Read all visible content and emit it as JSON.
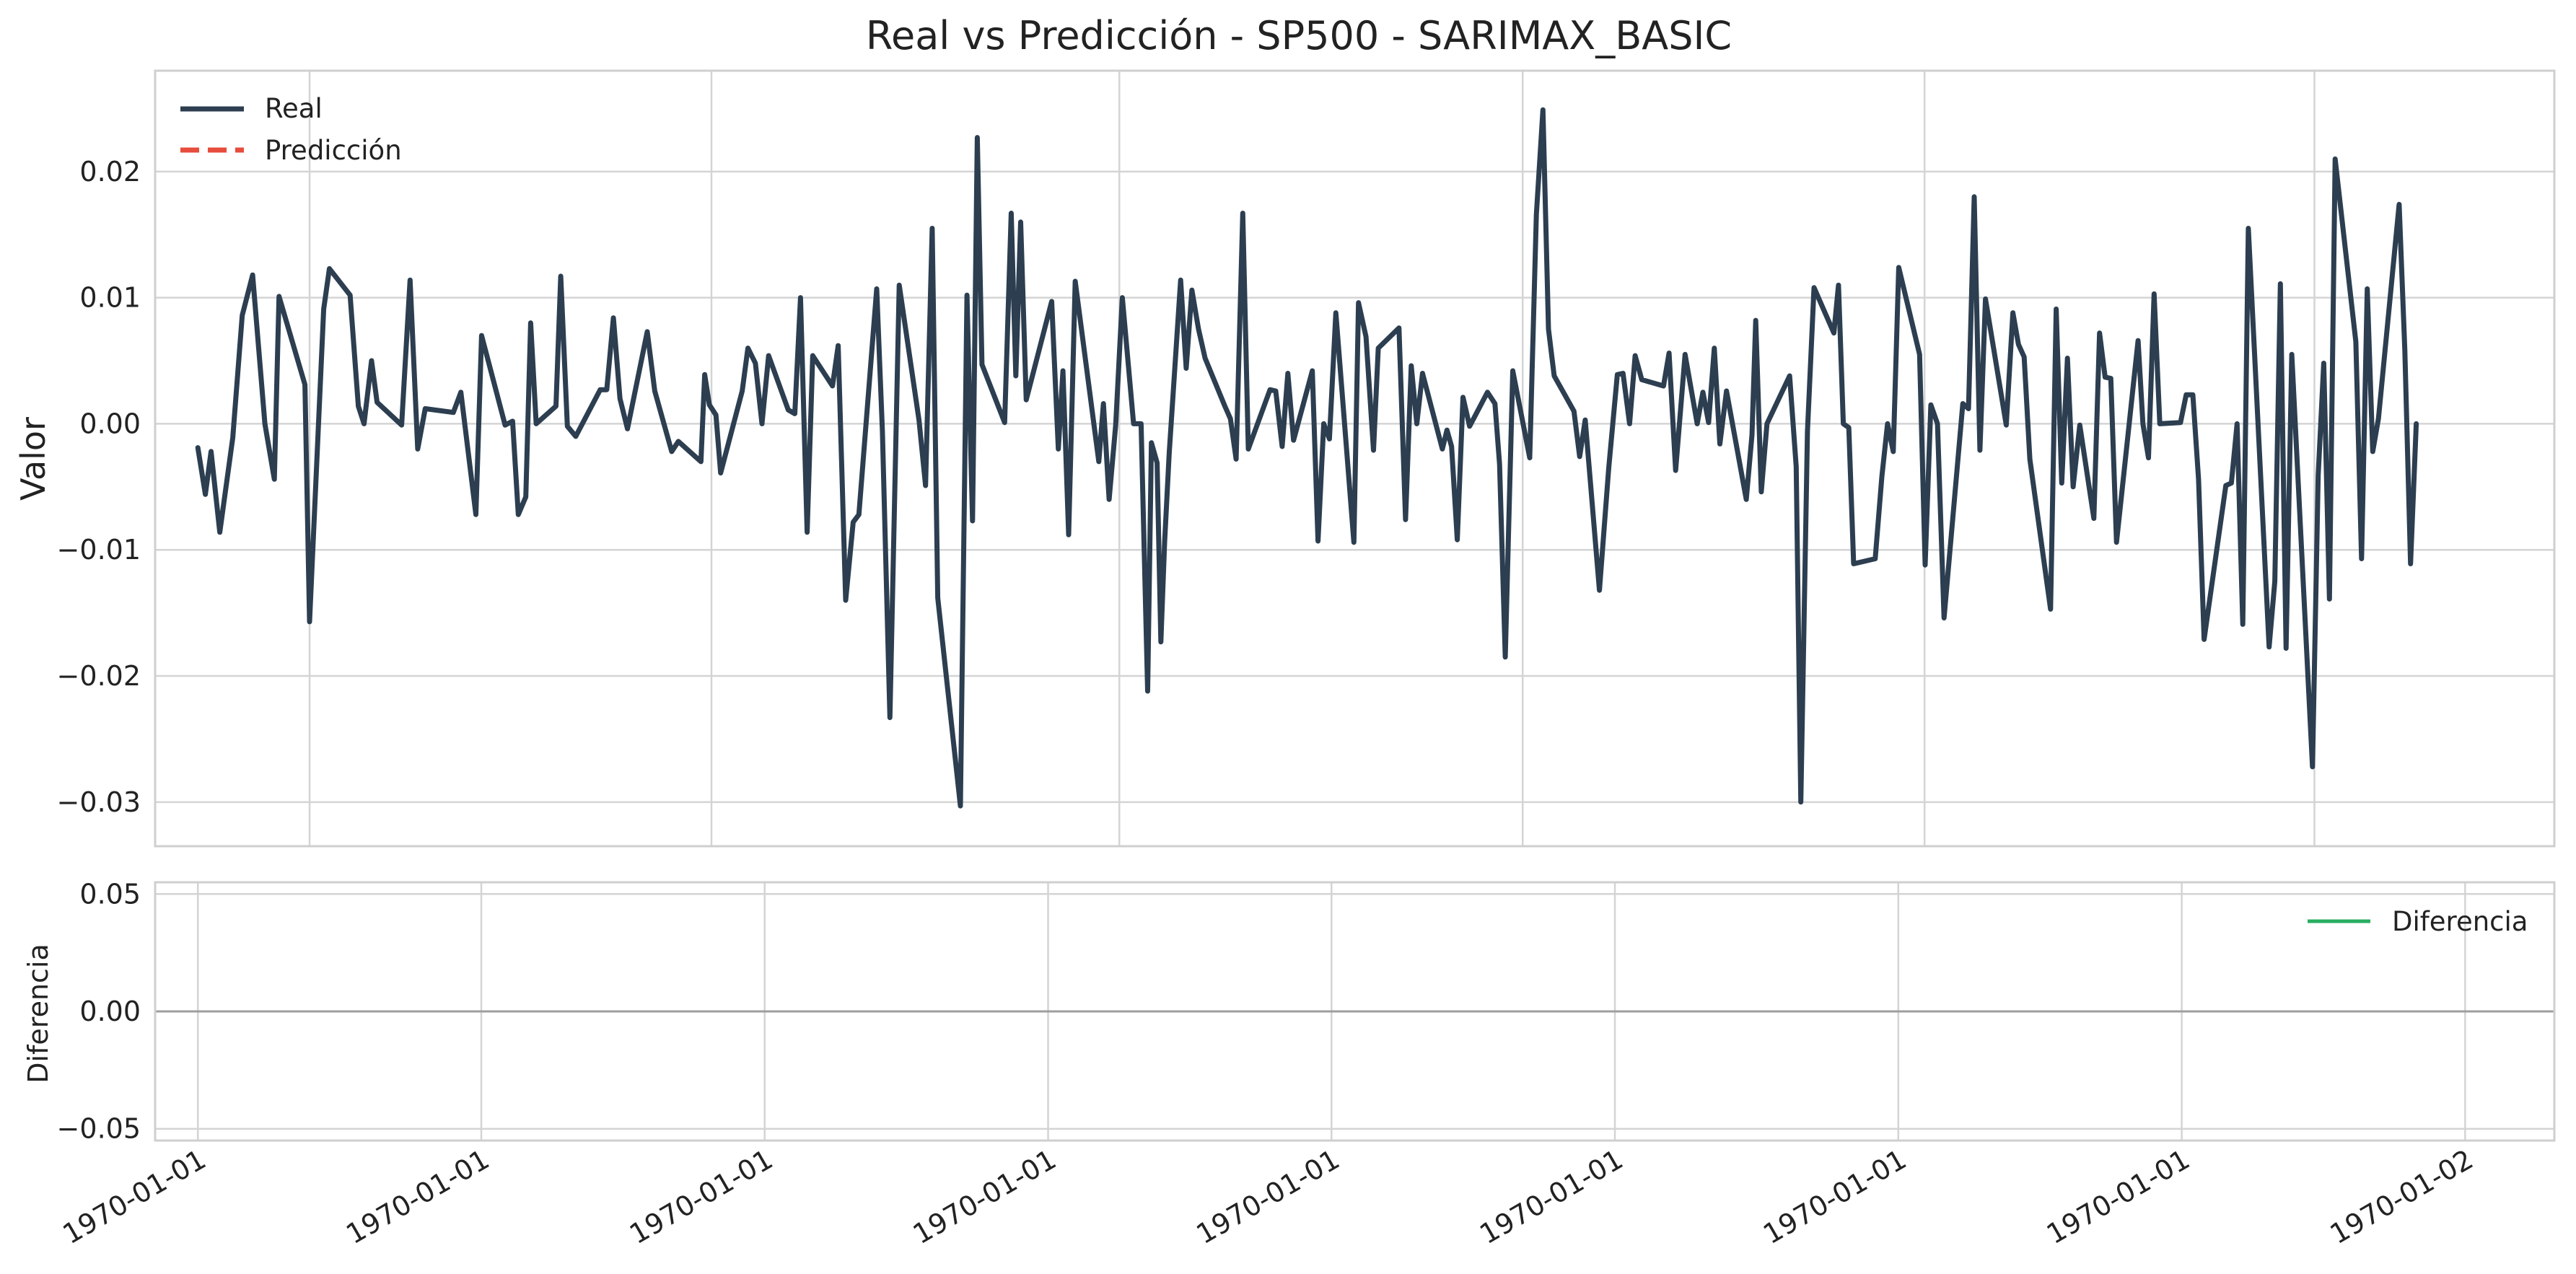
{
  "chart_data": [
    {
      "type": "line",
      "title": "Real vs Predicción - SP500 - SARIMAX_BASIC",
      "xlabel": "",
      "ylabel": "Valor",
      "ylim": [
        -0.0335,
        0.028
      ],
      "yticks": [
        -0.03,
        -0.02,
        -0.01,
        0.0,
        0.01,
        0.02
      ],
      "ytick_labels": [
        "−0.03",
        "−0.02",
        "−0.01",
        "0.00",
        "0.01",
        "0.02"
      ],
      "grid": true,
      "legend_position": "top-left",
      "legend": [
        {
          "name": "Real",
          "color": "#2c3e50",
          "style": "solid"
        },
        {
          "name": "Predicción",
          "color": "#e74c3c",
          "style": "dashed"
        }
      ],
      "series": [
        {
          "name": "Real",
          "color": "#2c3e50",
          "points": [
            [
              28.5,
              -0.0019
            ],
            [
              33.5,
              -0.0056
            ],
            [
              37.3,
              -0.0022
            ],
            [
              43.1,
              -0.0086
            ],
            [
              51.8,
              -0.0011
            ],
            [
              58.1,
              0.0086
            ],
            [
              65.0,
              0.0118
            ],
            [
              73.2,
              0.0
            ],
            [
              79.5,
              -0.0044
            ],
            [
              82.6,
              0.0101
            ],
            [
              99.9,
              0.0031
            ],
            [
              103.0,
              -0.0157
            ],
            [
              112.4,
              0.0091
            ],
            [
              116.2,
              0.0123
            ],
            [
              130.0,
              0.0102
            ],
            [
              135.5,
              0.0014
            ],
            [
              139.3,
              0.0
            ],
            [
              144.3,
              0.005
            ],
            [
              148.0,
              0.0017
            ],
            [
              164.4,
              -0.0001
            ],
            [
              170.0,
              0.0114
            ],
            [
              175.1,
              -0.002
            ],
            [
              180.1,
              0.0012
            ],
            [
              198.9,
              0.0009
            ],
            [
              203.9,
              0.0025
            ],
            [
              213.9,
              -0.0072
            ],
            [
              217.7,
              0.007
            ],
            [
              233.4,
              -0.0001
            ],
            [
              238.4,
              0.0002
            ],
            [
              242.2,
              -0.0072
            ],
            [
              247.2,
              -0.0058
            ],
            [
              250.4,
              0.008
            ],
            [
              254.1,
              0.0
            ],
            [
              267.3,
              0.0014
            ],
            [
              270.5,
              0.0117
            ],
            [
              274.9,
              -0.0002
            ],
            [
              280.5,
              -0.001
            ],
            [
              296.8,
              0.0027
            ],
            [
              301.2,
              0.0027
            ],
            [
              305.6,
              0.0084
            ],
            [
              310.0,
              0.002
            ],
            [
              315.0,
              -0.0004
            ],
            [
              328.2,
              0.0073
            ],
            [
              333.2,
              0.0026
            ],
            [
              344.5,
              -0.0022
            ],
            [
              348.9,
              -0.0014
            ],
            [
              364.0,
              -0.003
            ],
            [
              366.5,
              0.0039
            ],
            [
              369.6,
              0.0015
            ],
            [
              374.0,
              0.0007
            ],
            [
              377.1,
              -0.0039
            ],
            [
              391.5,
              0.0026
            ],
            [
              395.3,
              0.006
            ],
            [
              400.3,
              0.0048
            ],
            [
              404.7,
              0.0
            ],
            [
              409.1,
              0.0054
            ],
            [
              422.2,
              0.0011
            ],
            [
              426.6,
              0.0008
            ],
            [
              430.4,
              0.01
            ],
            [
              434.8,
              -0.0086
            ],
            [
              438.5,
              0.0054
            ],
            [
              451.7,
              0.003
            ],
            [
              455.5,
              0.0062
            ],
            [
              460.5,
              -0.014
            ],
            [
              465.5,
              -0.0078
            ],
            [
              469.3,
              -0.0072
            ],
            [
              481.2,
              0.0107
            ],
            [
              485.0,
              -0.0006
            ],
            [
              490.0,
              -0.0233
            ],
            [
              496.2,
              0.011
            ],
            [
              509.4,
              0.0003
            ],
            [
              513.8,
              -0.0049
            ],
            [
              518.2,
              0.0155
            ],
            [
              521.9,
              -0.0138
            ],
            [
              537.0,
              -0.0303
            ],
            [
              541.4,
              0.0102
            ],
            [
              545.1,
              -0.0077
            ],
            [
              548.3,
              0.0227
            ],
            [
              551.4,
              0.0047
            ],
            [
              566.5,
              0.0001
            ],
            [
              570.9,
              0.0167
            ],
            [
              574.0,
              0.0038
            ],
            [
              577.2,
              0.016
            ],
            [
              580.9,
              0.0019
            ],
            [
              597.9,
              0.0097
            ],
            [
              602.3,
              -0.002
            ],
            [
              605.4,
              0.0042
            ],
            [
              609.2,
              -0.0088
            ],
            [
              613.6,
              0.0113
            ],
            [
              629.3,
              -0.003
            ],
            [
              632.4,
              0.0016
            ],
            [
              636.2,
              -0.006
            ],
            [
              640.6,
              -0.0001
            ],
            [
              645.0,
              0.01
            ],
            [
              652.5,
              0.0
            ],
            [
              657.5,
              0.0
            ],
            [
              661.9,
              -0.0212
            ],
            [
              664.4,
              -0.0015
            ],
            [
              668.2,
              -0.0031
            ],
            [
              670.7,
              -0.0173
            ],
            [
              673.2,
              -0.0094
            ],
            [
              676.3,
              -0.0023
            ],
            [
              683.9,
              0.0114
            ],
            [
              687.6,
              0.0044
            ],
            [
              691.4,
              0.0106
            ],
            [
              695.8,
              0.0075
            ],
            [
              700.2,
              0.0052
            ],
            [
              713.4,
              0.0014
            ],
            [
              717.1,
              0.0004
            ],
            [
              720.9,
              -0.0028
            ],
            [
              725.3,
              0.0167
            ],
            [
              729.0,
              -0.002
            ],
            [
              743.5,
              0.0027
            ],
            [
              747.3,
              0.0026
            ],
            [
              751.6,
              -0.0018
            ],
            [
              755.4,
              0.004
            ],
            [
              759.2,
              -0.0013
            ],
            [
              771.7,
              0.0042
            ],
            [
              775.5,
              -0.0093
            ],
            [
              779.3,
              0.0
            ],
            [
              783.1,
              -0.0012
            ],
            [
              787.4,
              0.0088
            ],
            [
              799.4,
              -0.0094
            ],
            [
              802.5,
              0.0096
            ],
            [
              807.5,
              0.0069
            ],
            [
              812.5,
              -0.0021
            ],
            [
              815.7,
              0.006
            ],
            [
              829.5,
              0.0076
            ],
            [
              833.9,
              -0.0076
            ],
            [
              837.7,
              0.0046
            ],
            [
              841.4,
              0.0
            ],
            [
              845.2,
              0.004
            ],
            [
              858.4,
              -0.002
            ],
            [
              861.5,
              -0.0005
            ],
            [
              864.6,
              -0.0018
            ],
            [
              868.4,
              -0.0092
            ],
            [
              872.2,
              0.0021
            ],
            [
              876.6,
              -0.0002
            ],
            [
              888.5,
              0.0025
            ],
            [
              893.5,
              0.0016
            ],
            [
              896.6,
              -0.0032
            ],
            [
              900.4,
              -0.0185
            ],
            [
              905.4,
              0.0042
            ],
            [
              916.7,
              -0.0027
            ],
            [
              921.1,
              0.0166
            ],
            [
              925.5,
              0.0249
            ],
            [
              929.2,
              0.0075
            ],
            [
              933.0,
              0.0038
            ],
            [
              946.2,
              0.001
            ],
            [
              950.0,
              -0.0026
            ],
            [
              953.7,
              0.0003
            ],
            [
              963.2,
              -0.0132
            ],
            [
              969.4,
              -0.0035
            ],
            [
              975.1,
              0.0039
            ],
            [
              978.9,
              0.004
            ],
            [
              983.3,
              0.0
            ],
            [
              987.0,
              0.0054
            ],
            [
              991.4,
              0.0035
            ],
            [
              1005.9,
              0.003
            ],
            [
              1009.6,
              0.0056
            ],
            [
              1014.0,
              -0.0037
            ],
            [
              1020.3,
              0.0055
            ],
            [
              1028.4,
              0.0
            ],
            [
              1032.2,
              0.0025
            ],
            [
              1036.0,
              0.0001
            ],
            [
              1039.8,
              0.006
            ],
            [
              1043.5,
              -0.0016
            ],
            [
              1047.9,
              0.0026
            ],
            [
              1061.1,
              -0.006
            ],
            [
              1064.9,
              -0.0009
            ],
            [
              1067.4,
              0.0082
            ],
            [
              1071.1,
              -0.0054
            ],
            [
              1074.9,
              0.0
            ],
            [
              1090.0,
              0.0038
            ],
            [
              1094.4,
              -0.0034
            ],
            [
              1097.5,
              -0.03
            ],
            [
              1101.9,
              -0.0006
            ],
            [
              1106.3,
              0.0108
            ],
            [
              1119.5,
              0.0072
            ],
            [
              1122.6,
              0.011
            ],
            [
              1125.8,
              0.0
            ],
            [
              1129.5,
              -0.0003
            ],
            [
              1132.7,
              -0.0111
            ],
            [
              1147.1,
              -0.0107
            ],
            [
              1151.5,
              -0.0042
            ],
            [
              1155.3,
              0.0
            ],
            [
              1159.1,
              -0.0022
            ],
            [
              1162.8,
              0.0124
            ],
            [
              1176.7,
              0.0055
            ],
            [
              1180.4,
              -0.0112
            ],
            [
              1184.2,
              0.0015
            ],
            [
              1188.6,
              0.0
            ],
            [
              1193.0,
              -0.0154
            ],
            [
              1205.5,
              0.0016
            ],
            [
              1209.3,
              0.0012
            ],
            [
              1213.1,
              0.018
            ],
            [
              1216.9,
              -0.0021
            ],
            [
              1220.6,
              0.0099
            ],
            [
              1234.5,
              -0.0001
            ],
            [
              1238.9,
              0.0088
            ],
            [
              1242.6,
              0.0063
            ],
            [
              1246.4,
              0.0053
            ],
            [
              1250.2,
              -0.0028
            ],
            [
              1264.0,
              -0.0147
            ],
            [
              1267.8,
              0.0091
            ],
            [
              1271.5,
              -0.0047
            ],
            [
              1275.3,
              0.0052
            ],
            [
              1279.1,
              -0.005
            ],
            [
              1283.5,
              -0.0001
            ],
            [
              1292.9,
              -0.0075
            ],
            [
              1296.7,
              0.0072
            ],
            [
              1300.4,
              0.0037
            ],
            [
              1304.2,
              0.0036
            ],
            [
              1308.0,
              -0.0094
            ],
            [
              1322.4,
              0.0066
            ],
            [
              1325.6,
              0.0
            ],
            [
              1329.3,
              -0.0027
            ],
            [
              1333.1,
              0.0103
            ],
            [
              1336.9,
              0.0
            ],
            [
              1350.7,
              0.0001
            ],
            [
              1354.5,
              0.0023
            ],
            [
              1358.9,
              0.0023
            ],
            [
              1362.7,
              -0.0044
            ],
            [
              1366.4,
              -0.0171
            ],
            [
              1380.9,
              -0.0049
            ],
            [
              1384.6,
              -0.0047
            ],
            [
              1388.4,
              0.0
            ],
            [
              1392.2,
              -0.0159
            ],
            [
              1395.9,
              0.0155
            ],
            [
              1409.8,
              -0.0177
            ],
            [
              1413.6,
              -0.0125
            ],
            [
              1417.3,
              0.0111
            ],
            [
              1421.1,
              -0.0178
            ],
            [
              1424.9,
              0.0055
            ],
            [
              1438.7,
              -0.0272
            ],
            [
              1442.5,
              -0.0041
            ],
            [
              1446.2,
              0.0048
            ],
            [
              1450.0,
              -0.0139
            ],
            [
              1453.8,
              0.021
            ],
            [
              1467.6,
              0.0065
            ],
            [
              1471.4,
              -0.0107
            ],
            [
              1475.2,
              0.0107
            ],
            [
              1478.9,
              -0.0022
            ],
            [
              1482.7,
              0.0004
            ],
            [
              1496.5,
              0.0174
            ],
            [
              1500.3,
              0.0058
            ],
            [
              1504.1,
              -0.0111
            ],
            [
              1507.9,
              0.0
            ]
          ]
        }
      ],
      "x_domain": [
        0,
        1600
      ],
      "xticks_vertical_grid": [
        103,
        371,
        643,
        912,
        1180,
        1440
      ]
    },
    {
      "type": "line",
      "title": "",
      "xlabel": "",
      "ylabel": "Diferencia",
      "ylim": [
        -0.055,
        0.055
      ],
      "yticks": [
        -0.05,
        0.0,
        0.05
      ],
      "ytick_labels": [
        "−0.05",
        "0.00",
        "0.05"
      ],
      "grid": true,
      "legend_position": "top-right",
      "legend": [
        {
          "name": "Diferencia",
          "color": "#27ae60",
          "style": "solid"
        }
      ],
      "zero_line": true,
      "series": [
        {
          "name": "Diferencia",
          "color": "#27ae60",
          "points": []
        }
      ],
      "x_domain": [
        0,
        1600
      ],
      "xticks": [
        28.5,
        217.5,
        406.5,
        595.5,
        784.5,
        973.5,
        1162.5,
        1351.5,
        1540.5
      ],
      "xtick_labels": [
        "1970-01-01",
        "1970-01-01",
        "1970-01-01",
        "1970-01-01",
        "1970-01-01",
        "1970-01-01",
        "1970-01-01",
        "1970-01-01",
        "1970-01-02"
      ]
    }
  ]
}
